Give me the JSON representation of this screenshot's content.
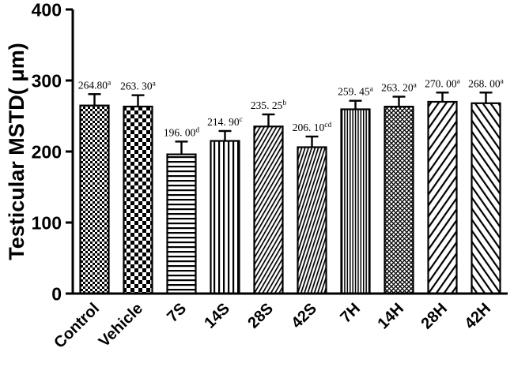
{
  "colors": {
    "foreground": "#000000",
    "background": "#ffffff"
  },
  "chart_data": {
    "type": "bar",
    "title": "",
    "xlabel": "",
    "ylabel": "Testicular MSTD( μm)",
    "ylim": [
      0,
      400
    ],
    "yticks": [
      0,
      100,
      200,
      300,
      400
    ],
    "grid": false,
    "legend": null,
    "bar_color": "#000000",
    "categories": [
      "Control",
      "Vehicle",
      "7S",
      "14S",
      "28S",
      "42S",
      "7H",
      "14H",
      "28H",
      "42H"
    ],
    "values": [
      264.8,
      263.3,
      196.0,
      214.9,
      235.25,
      206.1,
      259.45,
      263.2,
      270.0,
      268.0
    ],
    "errors": [
      16,
      16,
      18,
      14,
      17,
      15,
      12,
      14,
      13,
      15
    ],
    "value_labels": [
      "264.80",
      "263. 30",
      "196. 00",
      "214. 90",
      "235. 25",
      "206. 10",
      "259. 45",
      "263. 20",
      "270. 00",
      "268. 00"
    ],
    "superscripts": [
      "a",
      "a",
      "d",
      "c",
      "b",
      "cd",
      "a",
      "a",
      "a",
      "a"
    ],
    "patterns": [
      "checker-fine",
      "checker-coarse",
      "horizontal-lines",
      "vertical-lines",
      "diagonal-forward-dense",
      "diagonal-steep-dense",
      "vertical-lines-dense",
      "diamond-crosshatch",
      "diagonal-forward-wide",
      "diagonal-back-wide"
    ]
  }
}
